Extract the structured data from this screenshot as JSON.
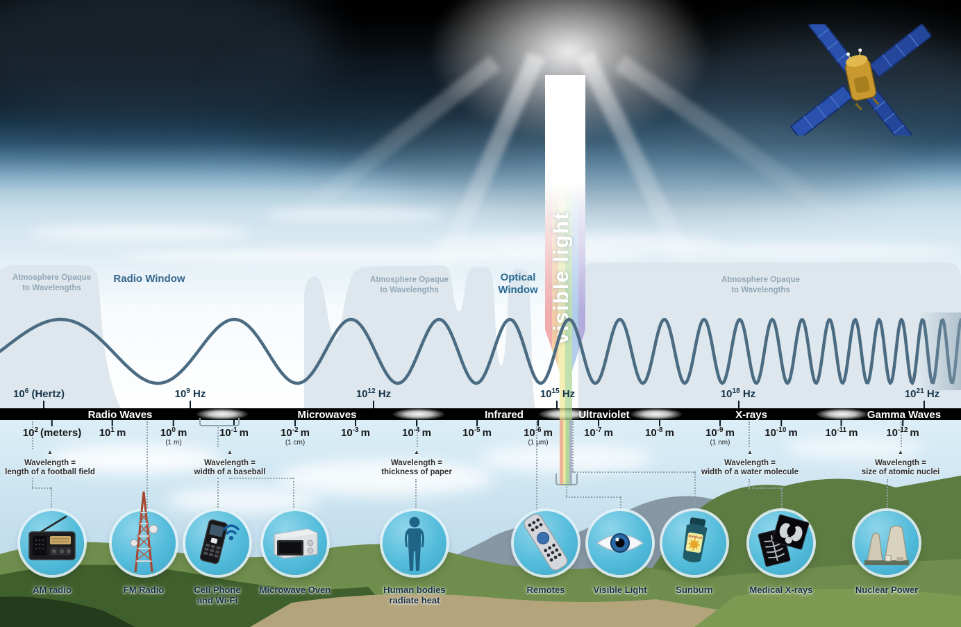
{
  "atmosphere": {
    "opaque_labels": [
      {
        "line1": "Atmosphere Opaque",
        "line2": "to Wavelengths"
      },
      {
        "line1": "Atmosphere Opaque",
        "line2": "to Wavelengths"
      },
      {
        "line1": "Atmosphere Opaque",
        "line2": "to Wavelengths"
      }
    ],
    "radio_window": "Radio Window",
    "optical_window": {
      "line1": "Optical",
      "line2": "Window"
    }
  },
  "beam": {
    "label": "visible light"
  },
  "frequency_scale": {
    "ticks": [
      {
        "base": "10",
        "exp": "6",
        "unit": "(Hertz)"
      },
      {
        "base": "10",
        "exp": "9",
        "unit": "Hz"
      },
      {
        "base": "10",
        "exp": "12",
        "unit": "Hz"
      },
      {
        "base": "10",
        "exp": "15",
        "unit": "Hz"
      },
      {
        "base": "10",
        "exp": "18",
        "unit": "Hz"
      },
      {
        "base": "10",
        "exp": "21",
        "unit": "Hz"
      }
    ]
  },
  "spectrum_bands": [
    {
      "label": "Radio Waves"
    },
    {
      "label": "Microwaves"
    },
    {
      "label": "Infrared"
    },
    {
      "label": "Ultraviolet"
    },
    {
      "label": "X-rays"
    },
    {
      "label": "Gamma Waves"
    }
  ],
  "wavelength_scale": {
    "ticks": [
      {
        "base": "10",
        "exp": "2",
        "unit": "(meters)",
        "note": ""
      },
      {
        "base": "10",
        "exp": "1",
        "unit": "m",
        "note": ""
      },
      {
        "base": "10",
        "exp": "0",
        "unit": "m",
        "note": "(1 m)"
      },
      {
        "base": "10",
        "exp": "-1",
        "unit": "m",
        "note": ""
      },
      {
        "base": "10",
        "exp": "-2",
        "unit": "m",
        "note": "(1 cm)"
      },
      {
        "base": "10",
        "exp": "-3",
        "unit": "m",
        "note": ""
      },
      {
        "base": "10",
        "exp": "-4",
        "unit": "m",
        "note": ""
      },
      {
        "base": "10",
        "exp": "-5",
        "unit": "m",
        "note": ""
      },
      {
        "base": "10",
        "exp": "-6",
        "unit": "m",
        "note": "(1 μm)"
      },
      {
        "base": "10",
        "exp": "-7",
        "unit": "m",
        "note": ""
      },
      {
        "base": "10",
        "exp": "-8",
        "unit": "m",
        "note": ""
      },
      {
        "base": "10",
        "exp": "-9",
        "unit": "m",
        "note": "(1 nm)"
      },
      {
        "base": "10",
        "exp": "-10",
        "unit": "m",
        "note": ""
      },
      {
        "base": "10",
        "exp": "-11",
        "unit": "m",
        "note": ""
      },
      {
        "base": "10",
        "exp": "-12",
        "unit": "m",
        "note": ""
      }
    ]
  },
  "comparisons": [
    {
      "line1": "Wavelength =",
      "line2": "length of a football field"
    },
    {
      "line1": "Wavelength =",
      "line2": "width of a baseball"
    },
    {
      "line1": "Wavelength =",
      "line2": "thickness of paper"
    },
    {
      "line1": "Wavelength =",
      "line2": "width of a water molecule"
    },
    {
      "line1": "Wavelength =",
      "line2": "size of atomic nuclei"
    }
  ],
  "sources": [
    {
      "label": "AM radio"
    },
    {
      "label": "FM Radio"
    },
    {
      "line1": "Cell Phone",
      "line2": "and Wi-Fi"
    },
    {
      "label": "Microwave Oven"
    },
    {
      "line1": "Human bodies",
      "line2": "radiate heat"
    },
    {
      "label": "Remotes"
    },
    {
      "label": "Visible Light"
    },
    {
      "label": "Sunburn"
    },
    {
      "label": "Medical X-rays"
    },
    {
      "label": "Nuclear Power"
    }
  ],
  "sunblock_bottle_text": "Sunblock",
  "colors": {
    "band_black": "#000000",
    "wave_stroke": "#4a6b82",
    "badge_fill": "#54bcdb",
    "opaque_fill": "#dce6ec",
    "navy_text": "#16334a"
  }
}
